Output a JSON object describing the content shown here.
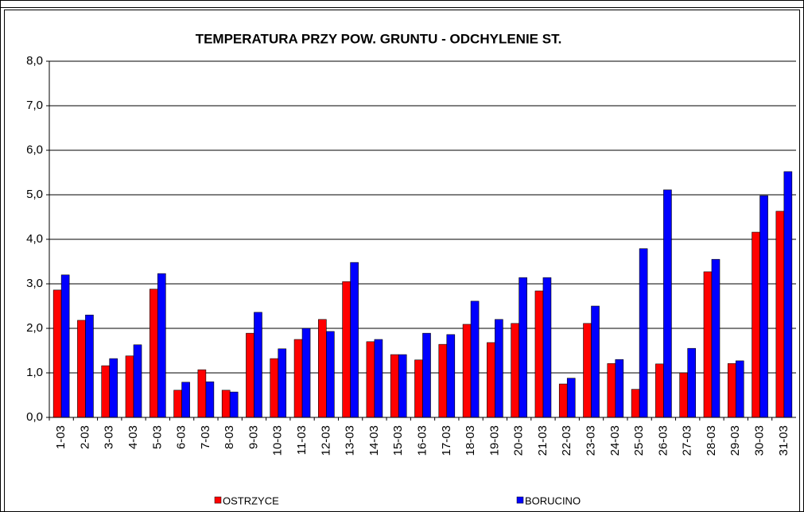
{
  "chart_data": {
    "type": "bar",
    "title": "TEMPERATURA PRZY POW. GRUNTU - ODCHYLENIE ST.",
    "categories": [
      "1-03",
      "2-03",
      "3-03",
      "4-03",
      "5-03",
      "6-03",
      "7-03",
      "8-03",
      "9-03",
      "10-03",
      "11-03",
      "12-03",
      "13-03",
      "14-03",
      "15-03",
      "16-03",
      "17-03",
      "18-03",
      "19-03",
      "20-03",
      "21-03",
      "22-03",
      "23-03",
      "24-03",
      "25-03",
      "26-03",
      "27-03",
      "28-03",
      "29-03",
      "30-03",
      "31-03"
    ],
    "series": [
      {
        "name": "OSTRZYCE",
        "color": "#ff0000",
        "values": [
          2.86,
          2.18,
          1.16,
          1.38,
          2.88,
          0.61,
          1.07,
          0.61,
          1.89,
          1.32,
          1.75,
          2.2,
          3.05,
          1.7,
          1.41,
          1.29,
          1.64,
          2.09,
          1.68,
          2.11,
          2.84,
          0.75,
          2.11,
          1.21,
          0.63,
          1.2,
          1.0,
          3.27,
          1.21,
          4.16,
          4.63
        ]
      },
      {
        "name": "BORUCINO",
        "color": "#0000ff",
        "values": [
          3.2,
          2.3,
          1.32,
          1.63,
          3.23,
          0.79,
          0.8,
          0.57,
          2.36,
          1.54,
          2.0,
          1.93,
          3.48,
          1.75,
          1.41,
          1.89,
          1.86,
          2.61,
          2.2,
          3.14,
          3.14,
          0.88,
          2.5,
          1.3,
          3.79,
          5.11,
          1.55,
          3.55,
          1.27,
          4.98,
          5.52
        ]
      }
    ],
    "ylim": [
      0,
      8
    ],
    "yticks": [
      {
        "value": 0,
        "label": "0,0"
      },
      {
        "value": 1,
        "label": "1,0"
      },
      {
        "value": 2,
        "label": "2,0"
      },
      {
        "value": 3,
        "label": "3,0"
      },
      {
        "value": 4,
        "label": "4,0"
      },
      {
        "value": 5,
        "label": "5,0"
      },
      {
        "value": 6,
        "label": "6,0"
      },
      {
        "value": 7,
        "label": "7,0"
      },
      {
        "value": 8,
        "label": "8,0"
      }
    ],
    "grid": true
  }
}
